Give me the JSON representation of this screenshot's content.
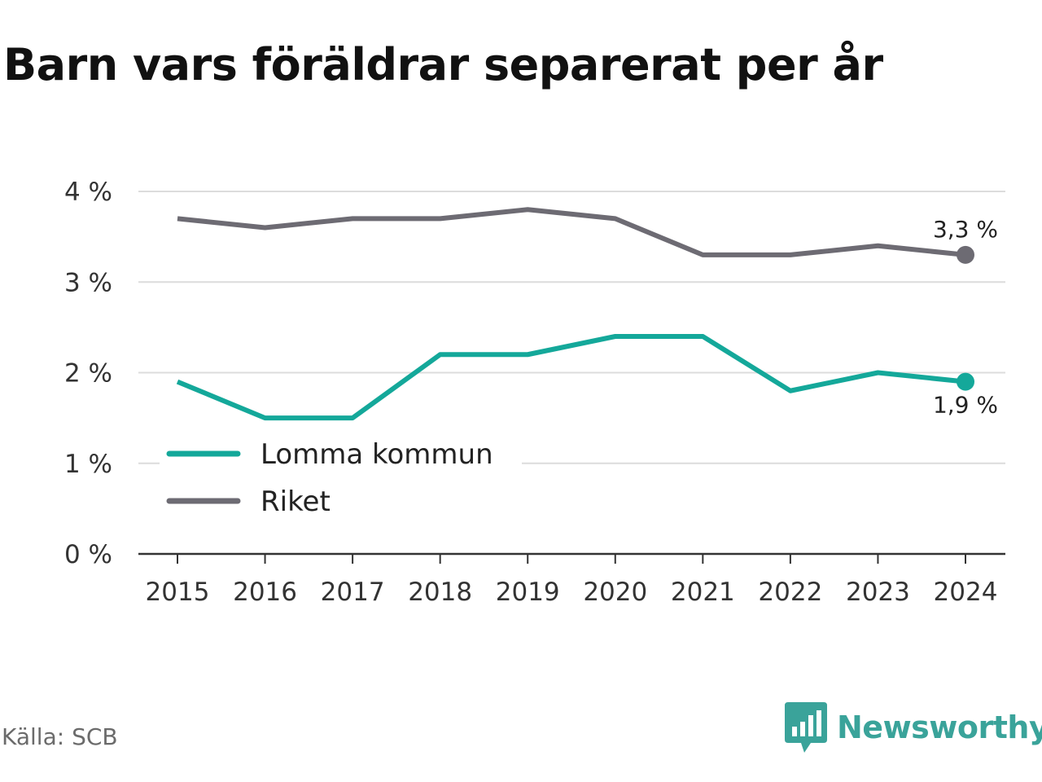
{
  "title": "Barn vars föräldrar separerat per år",
  "source": "Källa: SCB",
  "brand": {
    "name": "Newsworthy",
    "icon": "newsworthy-logo-icon",
    "color": "#3aa39a"
  },
  "chart_data": {
    "type": "line",
    "title": "Barn vars föräldrar separerat per år",
    "xlabel": "",
    "ylabel": "",
    "x": [
      "2015",
      "2016",
      "2017",
      "2018",
      "2019",
      "2020",
      "2021",
      "2022",
      "2023",
      "2024"
    ],
    "ylim": [
      0,
      4
    ],
    "yticks": [
      0,
      1,
      2,
      3,
      4
    ],
    "ytick_labels": [
      "0 %",
      "1 %",
      "2 %",
      "3 %",
      "4 %"
    ],
    "grid": true,
    "legend": "bottom-left",
    "series": [
      {
        "name": "Lomma kommun",
        "color": "#14a89a",
        "values": [
          1.9,
          1.5,
          1.5,
          2.2,
          2.2,
          2.4,
          2.4,
          1.8,
          2.0,
          1.9
        ],
        "end_label": "1,9 %",
        "end_label_position": "below"
      },
      {
        "name": "Riket",
        "color": "#6d6b73",
        "values": [
          3.7,
          3.6,
          3.7,
          3.7,
          3.8,
          3.7,
          3.3,
          3.3,
          3.4,
          3.3
        ],
        "end_label": "3,3 %",
        "end_label_position": "above"
      }
    ]
  }
}
